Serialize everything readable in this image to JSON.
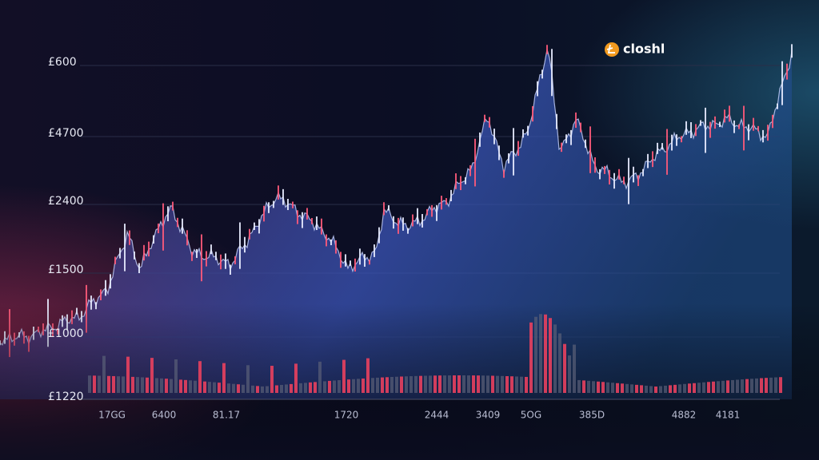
{
  "brand": "closhl",
  "y_labels": [
    "£600",
    "£4700",
    "£2400",
    "£1500",
    "£1000",
    "£1220"
  ],
  "x_labels": [
    "17GG",
    "6400",
    "81.17",
    "1720",
    "2444",
    "3409",
    "5OG",
    "385D",
    "4882",
    "4181"
  ]
}
